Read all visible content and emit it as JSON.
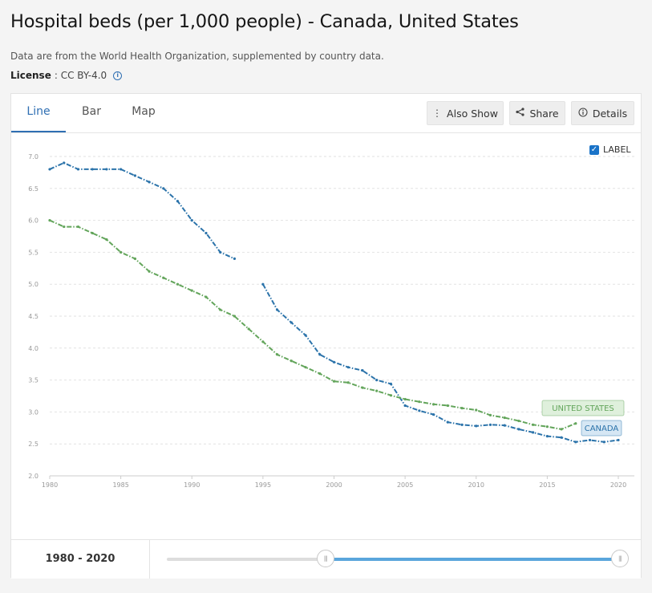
{
  "header": {
    "title": "Hospital beds (per 1,000 people) - Canada, United States",
    "subtitle": "Data are from the World Health Organization, supplemented by country data.",
    "license_label": "License",
    "license_value": ": CC BY-4.0",
    "info_icon": "i"
  },
  "tabs": [
    {
      "label": "Line",
      "active": true
    },
    {
      "label": "Bar",
      "active": false
    },
    {
      "label": "Map",
      "active": false
    }
  ],
  "toolbar": {
    "also_show": "Also Show",
    "share": "Share",
    "details": "Details"
  },
  "label_toggle": {
    "text": "LABEL",
    "checked": true
  },
  "footer": {
    "range_start": "1980",
    "range_sep": " - ",
    "range_end": "2020",
    "slider_start_fraction": 0.35,
    "slider_end_fraction": 1.0
  },
  "colors": {
    "canada": "#2b73aa",
    "united_states": "#63a55b",
    "grid": "#e2e2e2",
    "axis_text": "#999999"
  },
  "chart_data": {
    "type": "line",
    "xlim": [
      1980,
      2020
    ],
    "ylim": [
      2.0,
      7.0
    ],
    "yticks": [
      "2.0",
      "2.5",
      "3.0",
      "3.5",
      "4.0",
      "4.5",
      "5.0",
      "5.5",
      "6.0",
      "6.5",
      "7.0"
    ],
    "xticks": [
      "1980",
      "1985",
      "1990",
      "1995",
      "2000",
      "2005",
      "2010",
      "2015",
      "2020"
    ],
    "grid": true,
    "series": [
      {
        "name": "CANADA",
        "color": "#2b73aa",
        "label_bg": "#d6e7f4",
        "points": [
          [
            1980,
            6.8
          ],
          [
            1981,
            6.9
          ],
          [
            1982,
            6.8
          ],
          [
            1983,
            6.8
          ],
          [
            1984,
            6.8
          ],
          [
            1985,
            6.8
          ],
          [
            1986,
            6.7
          ],
          [
            1987,
            6.6
          ],
          [
            1988,
            6.5
          ],
          [
            1989,
            6.3
          ],
          [
            1990,
            6.0
          ],
          [
            1991,
            5.8
          ],
          [
            1992,
            5.5
          ],
          [
            1993,
            5.4
          ],
          null,
          [
            1995,
            5.0
          ],
          [
            1996,
            4.6
          ],
          [
            1997,
            4.4
          ],
          [
            1998,
            4.2
          ],
          [
            1999,
            3.9
          ],
          [
            2000,
            3.78
          ],
          [
            2001,
            3.7
          ],
          [
            2002,
            3.65
          ],
          [
            2003,
            3.5
          ],
          [
            2004,
            3.44
          ],
          [
            2005,
            3.1
          ],
          [
            2006,
            3.02
          ],
          [
            2007,
            2.96
          ],
          [
            2008,
            2.84
          ],
          [
            2009,
            2.8
          ],
          [
            2010,
            2.78
          ],
          [
            2011,
            2.8
          ],
          [
            2012,
            2.79
          ],
          [
            2013,
            2.73
          ],
          [
            2014,
            2.68
          ],
          [
            2015,
            2.62
          ],
          [
            2016,
            2.6
          ],
          [
            2017,
            2.53
          ],
          [
            2018,
            2.56
          ],
          [
            2019,
            2.53
          ],
          [
            2020,
            2.56
          ]
        ]
      },
      {
        "name": "UNITED STATES",
        "color": "#63a55b",
        "label_bg": "#dff0dc",
        "points": [
          [
            1980,
            6.0
          ],
          [
            1981,
            5.9
          ],
          [
            1982,
            5.9
          ],
          [
            1983,
            5.8
          ],
          [
            1984,
            5.7
          ],
          [
            1985,
            5.5
          ],
          [
            1986,
            5.4
          ],
          [
            1987,
            5.2
          ],
          [
            1988,
            5.1
          ],
          [
            1989,
            5.0
          ],
          [
            1990,
            4.9
          ],
          [
            1991,
            4.8
          ],
          [
            1992,
            4.6
          ],
          [
            1993,
            4.5
          ],
          [
            1994,
            4.3
          ],
          [
            1995,
            4.1
          ],
          [
            1996,
            3.9
          ],
          [
            1997,
            3.8
          ],
          [
            1998,
            3.7
          ],
          [
            1999,
            3.6
          ],
          [
            2000,
            3.48
          ],
          [
            2001,
            3.46
          ],
          [
            2002,
            3.38
          ],
          [
            2003,
            3.33
          ],
          [
            2004,
            3.26
          ],
          [
            2005,
            3.2
          ],
          [
            2006,
            3.16
          ],
          [
            2007,
            3.12
          ],
          [
            2008,
            3.1
          ],
          [
            2009,
            3.06
          ],
          [
            2010,
            3.03
          ],
          [
            2011,
            2.95
          ],
          [
            2012,
            2.91
          ],
          [
            2013,
            2.86
          ],
          [
            2014,
            2.8
          ],
          [
            2015,
            2.77
          ],
          [
            2016,
            2.73
          ],
          [
            2017,
            2.82
          ]
        ]
      }
    ]
  }
}
